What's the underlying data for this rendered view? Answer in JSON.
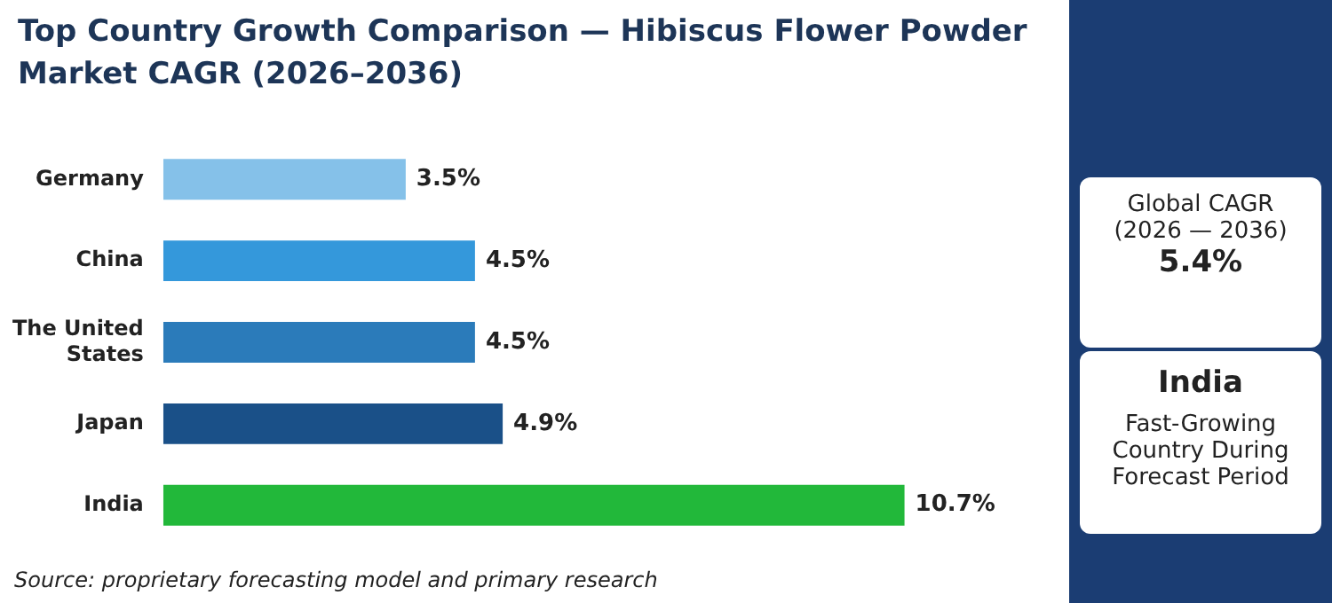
{
  "chart_data": {
    "type": "bar",
    "orientation": "horizontal",
    "title": "Top Country Growth Comparison — Hibiscus Flower Powder Market CAGR (2026–2036)",
    "categories": [
      "Germany",
      "China",
      "The United States",
      "Japan",
      "India"
    ],
    "values": [
      3.5,
      4.5,
      4.5,
      4.9,
      10.7
    ],
    "colors": [
      "#85c1e9",
      "#3498db",
      "#2b7bba",
      "#1a5088",
      "#22b83a"
    ],
    "value_labels": [
      "3.5%",
      "4.5%",
      "4.5%",
      "4.9%",
      "10.7%"
    ],
    "legend": false,
    "annotations": [
      "Source: proprietary forecasting model and primary research",
      "Global CAGR",
      "(2026 — 2036)",
      "5.4%",
      "India",
      "Fast-Growing Country During Forecast Period"
    ]
  }
}
